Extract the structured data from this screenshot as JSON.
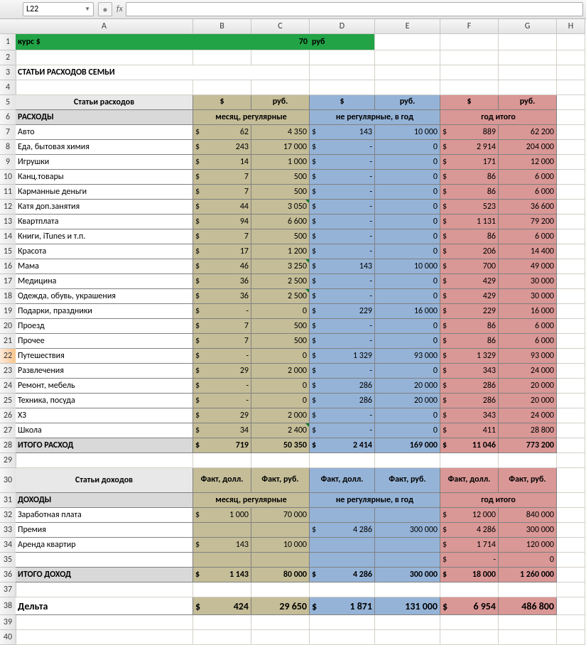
{
  "toolbar": {
    "nameboxValue": "L22",
    "fxLabel": "fx"
  },
  "columns": {
    "widths": {
      "A": 250,
      "B": 82,
      "C": 82,
      "D": 92,
      "E": 92,
      "F": 82,
      "G": 82,
      "H": 40
    },
    "letters": [
      "A",
      "B",
      "C",
      "D",
      "E",
      "F",
      "G",
      "H"
    ]
  },
  "colors": {
    "green": "#21a346",
    "olive": "#c4bd97",
    "blue": "#95b3d7",
    "rose": "#d99795",
    "sectionGrey": "#d9d9d9",
    "headerGrey": "#e8e8e8",
    "border": "#808080"
  },
  "rows": [
    {
      "n": 1,
      "type": "green",
      "a": "курс $",
      "b": "70",
      "c": "руб"
    },
    {
      "n": 2,
      "type": "blank"
    },
    {
      "n": 3,
      "type": "title",
      "a": "СТАТЬИ РАСХОДОВ СЕМЬИ"
    },
    {
      "n": 4,
      "type": "blank"
    },
    {
      "n": 5,
      "type": "hdr1",
      "a": "Статьи расходов",
      "b": "$",
      "c": "руб.",
      "d": "$",
      "e": "руб.",
      "f": "$",
      "g": "руб."
    },
    {
      "n": 6,
      "type": "hdr2",
      "a": "РАСХОДЫ",
      "bc": "месяц, регулярные",
      "de": "не регулярные, в год",
      "fg": "год итого"
    },
    {
      "n": 7,
      "type": "data",
      "a": "Авто",
      "b": "62",
      "c": "4 350",
      "d": "143",
      "e": "10 000",
      "f": "889",
      "g": "62 200"
    },
    {
      "n": 8,
      "type": "data",
      "a": "Еда, бытовая химия",
      "b": "243",
      "c": "17 000",
      "d": "-",
      "e": "0",
      "f": "2 914",
      "g": "204 000"
    },
    {
      "n": 9,
      "type": "data",
      "a": "Игрушки",
      "b": "14",
      "c": "1 000",
      "d": "-",
      "e": "0",
      "f": "171",
      "g": "12 000"
    },
    {
      "n": 10,
      "type": "data",
      "a": "Канц.товары",
      "b": "7",
      "c": "500",
      "d": "-",
      "e": "0",
      "f": "86",
      "g": "6 000"
    },
    {
      "n": 11,
      "type": "data",
      "a": "Карманные деньги",
      "b": "7",
      "c": "500",
      "d": "-",
      "e": "0",
      "f": "86",
      "g": "6 000"
    },
    {
      "n": 12,
      "type": "data",
      "a": "Катя доп.занятия",
      "b": "44",
      "c": "3 050",
      "d": "-",
      "e": "0",
      "f": "523",
      "g": "36 600",
      "tri": [
        "c"
      ]
    },
    {
      "n": 13,
      "type": "data",
      "a": "Квартплата",
      "b": "94",
      "c": "6 600",
      "d": "-",
      "e": "0",
      "f": "1 131",
      "g": "79 200"
    },
    {
      "n": 14,
      "type": "data",
      "a": "Книги, iTunes и т.п.",
      "b": "7",
      "c": "500",
      "d": "-",
      "e": "0",
      "f": "86",
      "g": "6 000"
    },
    {
      "n": 15,
      "type": "data",
      "a": "Красота",
      "b": "17",
      "c": "1 200",
      "d": "-",
      "e": "0",
      "f": "206",
      "g": "14 400"
    },
    {
      "n": 16,
      "type": "data",
      "a": "Мама",
      "b": "46",
      "c": "3 250",
      "d": "143",
      "e": "10 000",
      "f": "700",
      "g": "49 000",
      "tri": [
        "c"
      ]
    },
    {
      "n": 17,
      "type": "data",
      "a": "Медицина",
      "b": "36",
      "c": "2 500",
      "d": "-",
      "e": "0",
      "f": "429",
      "g": "30 000"
    },
    {
      "n": 18,
      "type": "data",
      "a": "Одежда, обувь, украшения",
      "b": "36",
      "c": "2 500",
      "d": "-",
      "e": "0",
      "f": "429",
      "g": "30 000",
      "tri": [
        "c"
      ]
    },
    {
      "n": 19,
      "type": "data",
      "a": "Подарки, праздники",
      "b": "-",
      "c": "0",
      "d": "229",
      "e": "16 000",
      "f": "229",
      "g": "16 000"
    },
    {
      "n": 20,
      "type": "data",
      "a": "Проезд",
      "b": "7",
      "c": "500",
      "d": "-",
      "e": "0",
      "f": "86",
      "g": "6 000"
    },
    {
      "n": 21,
      "type": "data",
      "a": "Прочее",
      "b": "7",
      "c": "500",
      "d": "-",
      "e": "0",
      "f": "86",
      "g": "6 000"
    },
    {
      "n": 22,
      "type": "data",
      "a": "Путешествия",
      "b": "-",
      "c": "0",
      "d": "1 329",
      "e": "93 000",
      "f": "1 329",
      "g": "93 000",
      "hl": true
    },
    {
      "n": 23,
      "type": "data",
      "a": "Развлечения",
      "b": "29",
      "c": "2 000",
      "d": "-",
      "e": "0",
      "f": "343",
      "g": "24 000"
    },
    {
      "n": 24,
      "type": "data",
      "a": "Ремонт, мебель",
      "b": "-",
      "c": "0",
      "d": "286",
      "e": "20 000",
      "f": "286",
      "g": "20 000"
    },
    {
      "n": 25,
      "type": "data",
      "a": "Техника, посуда",
      "b": "-",
      "c": "0",
      "d": "286",
      "e": "20 000",
      "f": "286",
      "g": "20 000"
    },
    {
      "n": 26,
      "type": "data",
      "a": "ХЗ",
      "b": "29",
      "c": "2 000",
      "d": "-",
      "e": "0",
      "f": "343",
      "g": "24 000"
    },
    {
      "n": 27,
      "type": "data",
      "a": "Школа",
      "b": "34",
      "c": "2 400",
      "d": "-",
      "e": "0",
      "f": "411",
      "g": "28 800",
      "tri": [
        "c"
      ]
    },
    {
      "n": 28,
      "type": "total",
      "a": "ИТОГО РАСХОД",
      "b": "719",
      "c": "50 350",
      "d": "2 414",
      "e": "169 000",
      "f": "11 046",
      "g": "773 200"
    },
    {
      "n": 29,
      "type": "blank"
    },
    {
      "n": 30,
      "type": "hdr1b",
      "a": "Статьи доходов",
      "b": "Факт, долл.",
      "c": "Факт, руб.",
      "d": "Факт, долл.",
      "e": "Факт, руб.",
      "f": "Факт, долл.",
      "g": "Факт, руб.",
      "tall": true
    },
    {
      "n": 31,
      "type": "hdr2",
      "a": "ДОХОДЫ",
      "bc": "месяц, регулярные",
      "de": "не регулярные, в год",
      "fg": "год итого"
    },
    {
      "n": 32,
      "type": "data",
      "a": "Заработная плата",
      "b": "1 000",
      "c": "70 000",
      "d": "",
      "e": "",
      "f": "12 000",
      "g": "840 000"
    },
    {
      "n": 33,
      "type": "data",
      "a": "Премия",
      "b": "",
      "c": "",
      "d": "4 286",
      "e": "300 000",
      "f": "4 286",
      "g": "300 000"
    },
    {
      "n": 34,
      "type": "data",
      "a": "Аренда квартир",
      "b": "143",
      "c": "10 000",
      "d": "",
      "e": "",
      "f": "1 714",
      "g": "120 000"
    },
    {
      "n": 35,
      "type": "data",
      "a": "",
      "b": "",
      "c": "",
      "d": "",
      "e": "",
      "f": "-",
      "g": "0"
    },
    {
      "n": 36,
      "type": "total",
      "a": "ИТОГО ДОХОД",
      "b": "1 143",
      "c": "80 000",
      "d": "4 286",
      "e": "300 000",
      "f": "18 000",
      "g": "1 260 000"
    },
    {
      "n": 37,
      "type": "blank"
    },
    {
      "n": 38,
      "type": "delta",
      "a": "Дельта",
      "b": "424",
      "c": "29 650",
      "d": "1 871",
      "e": "131 000",
      "f": "6 954",
      "g": "486 800"
    },
    {
      "n": 39,
      "type": "blank"
    },
    {
      "n": 40,
      "type": "blank"
    }
  ]
}
